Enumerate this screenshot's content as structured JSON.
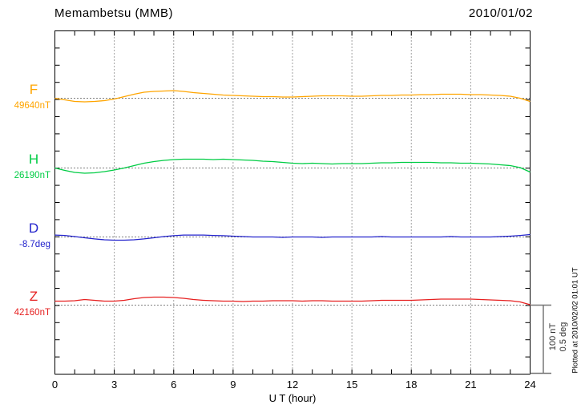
{
  "header": {
    "title": "Memambetsu (MMB)",
    "date": "2010/01/02"
  },
  "x_axis": {
    "label": "U T (hour)",
    "tick_labels": [
      "0",
      "3",
      "6",
      "9",
      "12",
      "15",
      "18",
      "21",
      "24"
    ]
  },
  "right_margin": {
    "scale_label_line1": "100 nT",
    "scale_label_line2": "0.5 deg",
    "plotted_note": "Plotted at 2010/02/02 01:01 UT"
  },
  "channels": [
    {
      "name": "F",
      "value_label": "49640nT",
      "color": "#FFA500"
    },
    {
      "name": "H",
      "value_label": "26190nT",
      "color": "#00CC44"
    },
    {
      "name": "D",
      "value_label": "-8.7deg",
      "color": "#2222CC"
    },
    {
      "name": "Z",
      "value_label": "42160nT",
      "color": "#E62020"
    }
  ],
  "chart_data": {
    "type": "line",
    "title": "Memambetsu (MMB)",
    "date": "2010/01/02",
    "xlabel": "U T (hour)",
    "x_start_hour": 0,
    "x_end_hour": 24,
    "x_step_hour": 0.5,
    "x_tick_hours": [
      0,
      3,
      6,
      9,
      12,
      15,
      18,
      21,
      24
    ],
    "grid": "dotted vertical lines every 3 h; dotted horizontal baseline at each channel reference value",
    "scale_bar": {
      "nT": 100,
      "deg": 0.5
    },
    "series": [
      {
        "name": "F",
        "unit": "nT",
        "reference_value": 49640,
        "offsets": [
          0,
          -2.3,
          -4.6,
          -5.2,
          -4.6,
          -3.4,
          -1.1,
          2.3,
          5.7,
          8.6,
          9.8,
          10.3,
          10.9,
          9.8,
          8.0,
          6.9,
          5.7,
          4.6,
          4.0,
          3.4,
          2.9,
          2.3,
          2.3,
          1.7,
          1.7,
          2.3,
          2.9,
          3.4,
          3.4,
          3.4,
          2.9,
          2.9,
          3.4,
          4.0,
          4.0,
          4.6,
          4.6,
          5.2,
          5.2,
          5.7,
          5.7,
          5.7,
          5.2,
          5.2,
          4.6,
          4.0,
          2.9,
          0,
          -4.6
        ]
      },
      {
        "name": "H",
        "unit": "nT",
        "reference_value": 26190,
        "offsets": [
          0,
          -3.4,
          -6.3,
          -7.5,
          -6.9,
          -5.2,
          -2.9,
          0,
          3.4,
          6.9,
          9.2,
          10.9,
          12.1,
          12.6,
          12.6,
          12.6,
          12.1,
          12.6,
          12.1,
          11.5,
          10.9,
          9.8,
          9.2,
          8.0,
          6.9,
          6.3,
          6.9,
          6.3,
          5.7,
          6.3,
          6.3,
          6.3,
          6.9,
          7.5,
          7.5,
          8.0,
          8.0,
          8.0,
          8.0,
          7.5,
          7.5,
          6.9,
          6.9,
          6.3,
          5.7,
          4.6,
          3.4,
          0.6,
          -5.7
        ]
      },
      {
        "name": "D",
        "unit": "deg",
        "reference_value": -8.7,
        "offsets": [
          0.014,
          0.011,
          0.003,
          -0.006,
          -0.014,
          -0.02,
          -0.023,
          -0.023,
          -0.02,
          -0.014,
          -0.006,
          0.003,
          0.009,
          0.014,
          0.014,
          0.014,
          0.011,
          0.009,
          0.006,
          0.003,
          0,
          0,
          0,
          -0.003,
          0,
          0,
          0,
          -0.003,
          0,
          0,
          0,
          0,
          0,
          0.003,
          0,
          0,
          0,
          0,
          0,
          0,
          0.003,
          0,
          0,
          0,
          0,
          0.003,
          0.006,
          0.011,
          0.017
        ]
      },
      {
        "name": "Z",
        "unit": "nT",
        "reference_value": 42160,
        "offsets": [
          5.7,
          5.7,
          6.3,
          8.0,
          6.9,
          5.7,
          5.7,
          6.9,
          9.2,
          10.9,
          11.5,
          11.5,
          10.9,
          9.8,
          8.0,
          6.9,
          6.3,
          5.7,
          5.7,
          5.2,
          5.7,
          5.7,
          6.3,
          6.3,
          6.3,
          5.7,
          6.3,
          6.3,
          5.7,
          5.7,
          5.7,
          5.7,
          6.3,
          6.9,
          6.9,
          6.9,
          6.9,
          7.5,
          8.0,
          8.6,
          8.6,
          8.6,
          8.6,
          8.0,
          7.5,
          6.9,
          6.3,
          4.6,
          0.6
        ]
      }
    ]
  }
}
